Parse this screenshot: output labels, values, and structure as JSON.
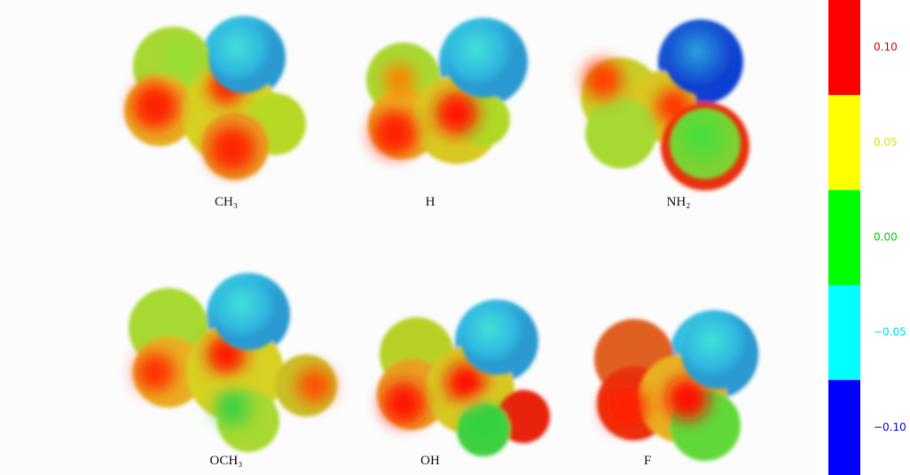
{
  "panels": [
    {
      "label": "CH₃"
    },
    {
      "label": "H"
    },
    {
      "label": "NH₂"
    },
    {
      "label": "OCH₃"
    },
    {
      "label": "OH"
    },
    {
      "label": "F"
    }
  ],
  "colorbar": {
    "lim": [
      -0.125,
      0.125
    ],
    "bands": [
      {
        "from": 0.075,
        "to": 0.125,
        "color": "#ff0000"
      },
      {
        "from": 0.025,
        "to": 0.075,
        "color": "#ffff00"
      },
      {
        "from": -0.025,
        "to": 0.025,
        "color": "#00ff00"
      },
      {
        "from": -0.075,
        "to": -0.025,
        "color": "#00ffff"
      },
      {
        "from": -0.125,
        "to": -0.075,
        "color": "#0000ff"
      }
    ],
    "ticks": [
      {
        "value": 0.1,
        "label": "0.10",
        "color": "#e00000"
      },
      {
        "value": 0.05,
        "label": "0.05",
        "color": "#e0e000"
      },
      {
        "value": 0,
        "label": "0.00",
        "color": "#00d000"
      },
      {
        "value": -0.05,
        "label": "−0.05",
        "color": "#00e0e0"
      },
      {
        "value": -0.1,
        "label": "−0.10",
        "color": "#0000e0"
      }
    ]
  }
}
